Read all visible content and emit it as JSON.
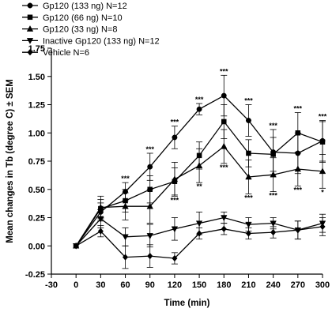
{
  "chart_data": {
    "type": "line",
    "xlabel": "Time (min)",
    "ylabel": "Mean changes in Tb (degree C) ± SEM",
    "xlim": [
      -30,
      300
    ],
    "ylim": [
      -0.25,
      1.75
    ],
    "xticks": [
      -30,
      0,
      30,
      60,
      90,
      120,
      150,
      180,
      210,
      240,
      270,
      300
    ],
    "yticks": [
      -0.25,
      0.0,
      0.25,
      0.5,
      0.75,
      1.0,
      1.25,
      1.5,
      1.75
    ],
    "ytick_labels": [
      "-0.25",
      "0.00",
      "0.25",
      "0.50",
      "0.75",
      "1.00",
      "1.25",
      "1.50",
      "1.75"
    ],
    "legend_position": "top-left",
    "grid": false,
    "x": [
      0,
      30,
      60,
      90,
      120,
      150,
      180,
      210,
      240,
      270,
      300
    ],
    "series": [
      {
        "name": "Gp120 (133 ng) N=12",
        "marker": "circle",
        "values": [
          0.0,
          0.3,
          0.48,
          0.7,
          0.96,
          1.21,
          1.33,
          1.11,
          0.83,
          0.82,
          0.93
        ],
        "errors": [
          0.0,
          0.08,
          0.08,
          0.12,
          0.1,
          0.05,
          0.18,
          0.14,
          0.2,
          0.18,
          0.18
        ]
      },
      {
        "name": "Gp120 (66 ng) N=10",
        "marker": "square",
        "values": [
          0.0,
          0.33,
          0.4,
          0.5,
          0.57,
          0.8,
          1.1,
          0.82,
          0.81,
          1.0,
          0.92
        ],
        "errors": [
          0.0,
          0.08,
          0.1,
          0.12,
          0.12,
          0.12,
          0.15,
          0.12,
          0.15,
          0.18,
          0.18
        ]
      },
      {
        "name": "Gp120 (33 ng) N=8",
        "marker": "triangle-up",
        "values": [
          0.0,
          0.34,
          0.35,
          0.35,
          0.59,
          0.71,
          0.88,
          0.61,
          0.63,
          0.68,
          0.66
        ],
        "errors": [
          0.0,
          0.1,
          0.12,
          0.15,
          0.15,
          0.15,
          0.15,
          0.15,
          0.15,
          0.15,
          0.15
        ]
      },
      {
        "name": "Inactive Gp120 (133 ng) N=12",
        "marker": "triangle-down",
        "values": [
          0.0,
          0.24,
          0.08,
          0.09,
          0.15,
          0.2,
          0.25,
          0.19,
          0.2,
          0.14,
          0.2
        ],
        "errors": [
          0.0,
          0.08,
          0.08,
          0.1,
          0.1,
          0.1,
          0.05,
          0.06,
          0.05,
          0.08,
          0.08
        ]
      },
      {
        "name": "Vehicle N=6",
        "marker": "diamond",
        "values": [
          0.0,
          0.13,
          -0.1,
          -0.09,
          -0.11,
          0.11,
          0.15,
          0.11,
          0.12,
          0.14,
          0.17
        ],
        "errors": [
          0.0,
          0.05,
          0.1,
          0.1,
          0.05,
          0.05,
          0.05,
          0.05,
          0.05,
          0.08,
          0.08
        ]
      }
    ],
    "annotations": [
      {
        "text": "***",
        "x": 60,
        "y": 0.56,
        "pos": "above"
      },
      {
        "text": "***",
        "x": 90,
        "y": 0.82,
        "pos": "above"
      },
      {
        "text": "***",
        "x": 120,
        "y": 1.06,
        "pos": "above"
      },
      {
        "text": "***",
        "x": 150,
        "y": 1.26,
        "pos": "above"
      },
      {
        "text": "***",
        "x": 180,
        "y": 1.51,
        "pos": "above"
      },
      {
        "text": "***",
        "x": 210,
        "y": 1.25,
        "pos": "above"
      },
      {
        "text": "***",
        "x": 240,
        "y": 1.03,
        "pos": "above"
      },
      {
        "text": "***",
        "x": 270,
        "y": 1.18,
        "pos": "above"
      },
      {
        "text": "***",
        "x": 300,
        "y": 1.11,
        "pos": "above"
      },
      {
        "text": "***",
        "x": 120,
        "y": 0.44,
        "pos": "below"
      },
      {
        "text": "**",
        "x": 150,
        "y": 0.56,
        "pos": "below"
      },
      {
        "text": "***",
        "x": 180,
        "y": 0.73,
        "pos": "below"
      },
      {
        "text": "***",
        "x": 210,
        "y": 0.46,
        "pos": "below"
      },
      {
        "text": "***",
        "x": 240,
        "y": 0.48,
        "pos": "below"
      },
      {
        "text": "***",
        "x": 270,
        "y": 0.53,
        "pos": "below"
      },
      {
        "text": "*",
        "x": 300,
        "y": 0.51,
        "pos": "below"
      }
    ]
  }
}
